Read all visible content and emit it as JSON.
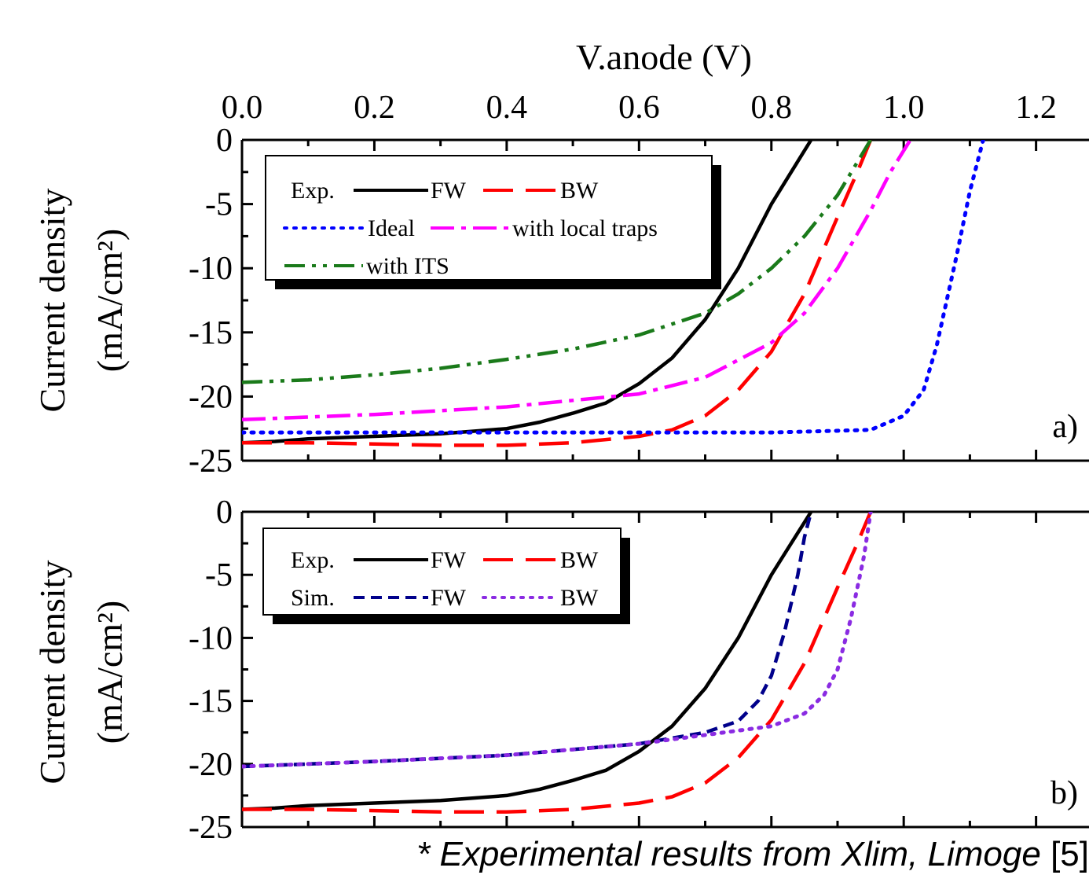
{
  "x_axis": {
    "title": "V.anode (V)",
    "ticks": [
      "0.0",
      "0.2",
      "0.4",
      "0.6",
      "0.8",
      "1.0",
      "1.2"
    ]
  },
  "footnote": {
    "italic": "* Experimental results from Xlim, Limoge",
    "ref": "[5]"
  },
  "colors": {
    "exp_fw": "#000000",
    "exp_bw": "#ff0000",
    "ideal": "#0000ff",
    "local_traps": "#ff00ff",
    "its": "#1a7a1a",
    "sim_fw": "#00008b",
    "sim_bw": "#8a2be2"
  },
  "chart_data": [
    {
      "type": "line",
      "panel_label": "a)",
      "xlabel": "V.anode (V)",
      "ylabel": "Current density",
      "ylabel_unit": "(mA/cm²)",
      "xlim": [
        0,
        1.28
      ],
      "ylim": [
        -25,
        0
      ],
      "y_ticks": [
        "0",
        "-5",
        "-10",
        "-15",
        "-20",
        "-25"
      ],
      "legend": {
        "rows": [
          [
            "Exp.",
            "FW",
            "BW"
          ],
          [
            "Ideal",
            "with local traps"
          ],
          [
            "with ITS"
          ]
        ]
      },
      "series": [
        {
          "name": "Exp. FW",
          "style": "solid",
          "color": "#000000",
          "x": [
            0,
            0.05,
            0.1,
            0.15,
            0.2,
            0.25,
            0.3,
            0.35,
            0.4,
            0.45,
            0.5,
            0.55,
            0.6,
            0.65,
            0.7,
            0.75,
            0.8,
            0.83,
            0.86
          ],
          "y": [
            -23.6,
            -23.5,
            -23.3,
            -23.2,
            -23.1,
            -23.0,
            -22.9,
            -22.7,
            -22.5,
            -22.0,
            -21.3,
            -20.5,
            -19.0,
            -17.0,
            -14.0,
            -10.0,
            -5.0,
            -2.5,
            0
          ]
        },
        {
          "name": "Exp. BW",
          "style": "dashed",
          "color": "#ff0000",
          "x": [
            0,
            0.1,
            0.2,
            0.3,
            0.4,
            0.5,
            0.6,
            0.65,
            0.7,
            0.75,
            0.8,
            0.85,
            0.9,
            0.93,
            0.95
          ],
          "y": [
            -23.6,
            -23.6,
            -23.7,
            -23.8,
            -23.8,
            -23.6,
            -23.1,
            -22.6,
            -21.5,
            -19.5,
            -16.5,
            -12.0,
            -6.0,
            -2.5,
            0
          ]
        },
        {
          "name": "Ideal",
          "style": "dotted",
          "color": "#0000ff",
          "x": [
            0,
            0.2,
            0.4,
            0.6,
            0.8,
            0.95,
            1.0,
            1.03,
            1.05,
            1.08,
            1.1,
            1.12
          ],
          "y": [
            -22.8,
            -22.8,
            -22.8,
            -22.8,
            -22.8,
            -22.6,
            -21.5,
            -19.5,
            -16.0,
            -9.0,
            -4.0,
            0
          ]
        },
        {
          "name": "with local traps",
          "style": "dashdot",
          "color": "#ff00ff",
          "x": [
            0,
            0.2,
            0.4,
            0.6,
            0.7,
            0.8,
            0.85,
            0.9,
            0.95,
            0.98,
            1.01
          ],
          "y": [
            -21.8,
            -21.4,
            -20.8,
            -19.8,
            -18.5,
            -15.8,
            -13.5,
            -10.0,
            -5.5,
            -2.5,
            0
          ]
        },
        {
          "name": "with ITS",
          "style": "dashdotdot",
          "color": "#1a7a1a",
          "x": [
            0,
            0.1,
            0.2,
            0.3,
            0.4,
            0.5,
            0.6,
            0.7,
            0.75,
            0.8,
            0.85,
            0.9,
            0.95
          ],
          "y": [
            -18.9,
            -18.7,
            -18.3,
            -17.8,
            -17.1,
            -16.3,
            -15.2,
            -13.5,
            -12.0,
            -10.0,
            -7.5,
            -4.3,
            0
          ]
        }
      ]
    },
    {
      "type": "line",
      "panel_label": "b)",
      "xlabel": "V.anode (V)",
      "ylabel": "Current density",
      "ylabel_unit": "(mA/cm²)",
      "xlim": [
        0,
        1.28
      ],
      "ylim": [
        -25,
        0
      ],
      "y_ticks": [
        "0",
        "-5",
        "-10",
        "-15",
        "-20",
        "-25"
      ],
      "legend": {
        "rows": [
          [
            "Exp.",
            "FW",
            "BW"
          ],
          [
            "Sim.",
            "FW",
            "BW"
          ]
        ]
      },
      "series": [
        {
          "name": "Exp. FW",
          "style": "solid",
          "color": "#000000",
          "x": [
            0,
            0.05,
            0.1,
            0.15,
            0.2,
            0.25,
            0.3,
            0.35,
            0.4,
            0.45,
            0.5,
            0.55,
            0.6,
            0.65,
            0.7,
            0.75,
            0.8,
            0.83,
            0.86
          ],
          "y": [
            -23.6,
            -23.5,
            -23.3,
            -23.2,
            -23.1,
            -23.0,
            -22.9,
            -22.7,
            -22.5,
            -22.0,
            -21.3,
            -20.5,
            -19.0,
            -17.0,
            -14.0,
            -10.0,
            -5.0,
            -2.5,
            0
          ]
        },
        {
          "name": "Exp. BW",
          "style": "dashed",
          "color": "#ff0000",
          "x": [
            0,
            0.1,
            0.2,
            0.3,
            0.4,
            0.5,
            0.6,
            0.65,
            0.7,
            0.75,
            0.8,
            0.85,
            0.9,
            0.93,
            0.95
          ],
          "y": [
            -23.6,
            -23.6,
            -23.7,
            -23.8,
            -23.8,
            -23.6,
            -23.1,
            -22.6,
            -21.5,
            -19.5,
            -16.5,
            -12.0,
            -6.0,
            -2.5,
            0
          ]
        },
        {
          "name": "Sim. FW",
          "style": "dashed-short",
          "color": "#00008b",
          "x": [
            0,
            0.2,
            0.4,
            0.6,
            0.7,
            0.75,
            0.78,
            0.8,
            0.82,
            0.84,
            0.85,
            0.86
          ],
          "y": [
            -20.2,
            -19.8,
            -19.3,
            -18.4,
            -17.5,
            -16.6,
            -15.0,
            -13.0,
            -9.5,
            -5.0,
            -2.0,
            0
          ]
        },
        {
          "name": "Sim. BW",
          "style": "dotted",
          "color": "#8a2be2",
          "x": [
            0,
            0.2,
            0.4,
            0.6,
            0.7,
            0.8,
            0.85,
            0.88,
            0.9,
            0.92,
            0.94,
            0.95
          ],
          "y": [
            -20.2,
            -19.8,
            -19.3,
            -18.4,
            -17.7,
            -17.0,
            -16.0,
            -14.5,
            -12.5,
            -8.5,
            -3.5,
            0
          ]
        }
      ]
    }
  ]
}
